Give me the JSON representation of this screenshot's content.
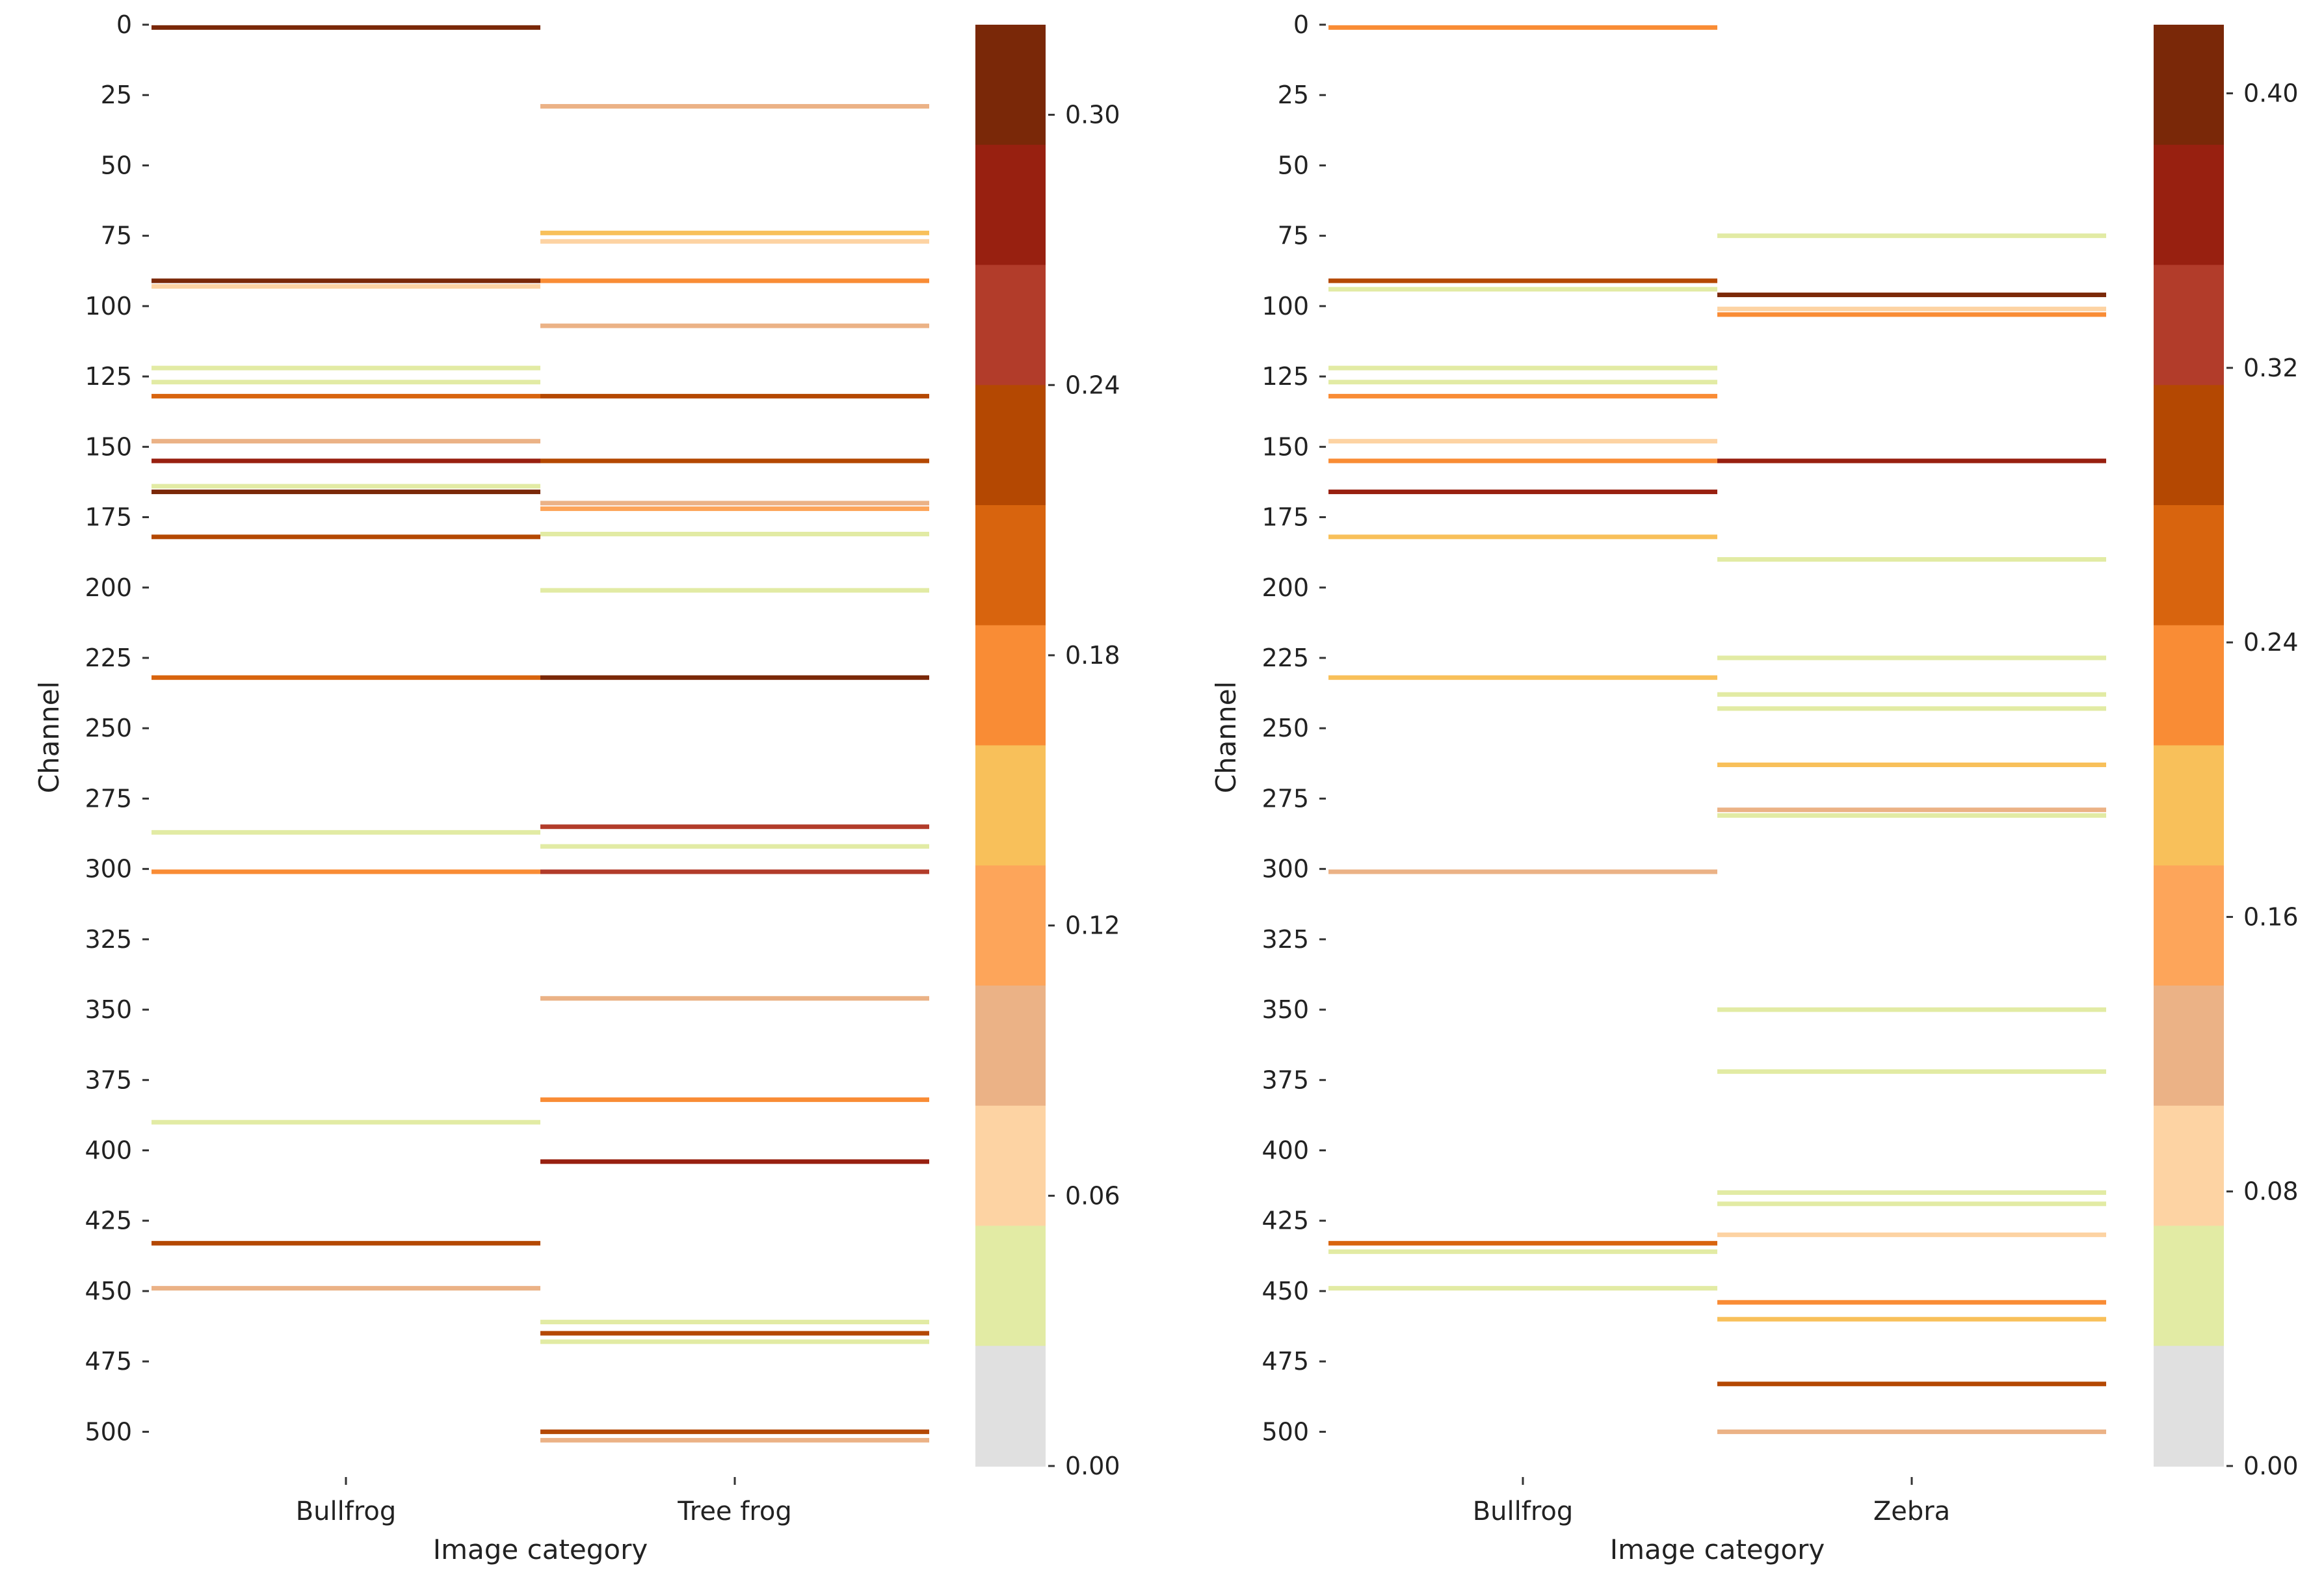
{
  "chart_data": [
    {
      "type": "heatmap",
      "title": "",
      "xlabel": "Image category",
      "ylabel": "Channel",
      "categories": [
        "Bullfrog",
        "Tree frog"
      ],
      "ylim": [
        0,
        511
      ],
      "yticks": [
        "0",
        "25",
        "50",
        "75",
        "100",
        "125",
        "150",
        "175",
        "200",
        "225",
        "250",
        "275",
        "300",
        "325",
        "350",
        "375",
        "400",
        "425",
        "450",
        "475",
        "500"
      ],
      "colorbar": {
        "min": 0.0,
        "max": 0.32,
        "ticks": [
          "0.00",
          "0.06",
          "0.12",
          "0.18",
          "0.24",
          "0.30"
        ]
      },
      "series": [
        {
          "category": "Bullfrog",
          "points": [
            {
              "channel": 1,
              "value": 0.31
            },
            {
              "channel": 91,
              "value": 0.3
            },
            {
              "channel": 93,
              "value": 0.07
            },
            {
              "channel": 122,
              "value": 0.03
            },
            {
              "channel": 127,
              "value": 0.03
            },
            {
              "channel": 132,
              "value": 0.19
            },
            {
              "channel": 148,
              "value": 0.09
            },
            {
              "channel": 155,
              "value": 0.28
            },
            {
              "channel": 164,
              "value": 0.03
            },
            {
              "channel": 166,
              "value": 0.32
            },
            {
              "channel": 182,
              "value": 0.22
            },
            {
              "channel": 232,
              "value": 0.2
            },
            {
              "channel": 287,
              "value": 0.03
            },
            {
              "channel": 301,
              "value": 0.18
            },
            {
              "channel": 390,
              "value": 0.03
            },
            {
              "channel": 433,
              "value": 0.23
            },
            {
              "channel": 449,
              "value": 0.08
            }
          ]
        },
        {
          "category": "Tree frog",
          "points": [
            {
              "channel": 29,
              "value": 0.08
            },
            {
              "channel": 74,
              "value": 0.14
            },
            {
              "channel": 77,
              "value": 0.07
            },
            {
              "channel": 91,
              "value": 0.18
            },
            {
              "channel": 107,
              "value": 0.08
            },
            {
              "channel": 132,
              "value": 0.23
            },
            {
              "channel": 155,
              "value": 0.22
            },
            {
              "channel": 170,
              "value": 0.08
            },
            {
              "channel": 172,
              "value": 0.11
            },
            {
              "channel": 181,
              "value": 0.03
            },
            {
              "channel": 201,
              "value": 0.04
            },
            {
              "channel": 232,
              "value": 0.32
            },
            {
              "channel": 285,
              "value": 0.26
            },
            {
              "channel": 292,
              "value": 0.03
            },
            {
              "channel": 301,
              "value": 0.24
            },
            {
              "channel": 346,
              "value": 0.08
            },
            {
              "channel": 382,
              "value": 0.18
            },
            {
              "channel": 404,
              "value": 0.28
            },
            {
              "channel": 461,
              "value": 0.03
            },
            {
              "channel": 465,
              "value": 0.23
            },
            {
              "channel": 468,
              "value": 0.03
            },
            {
              "channel": 500,
              "value": 0.22
            },
            {
              "channel": 503,
              "value": 0.08
            }
          ]
        }
      ]
    },
    {
      "type": "heatmap",
      "title": "",
      "xlabel": "Image category",
      "ylabel": "Channel",
      "categories": [
        "Bullfrog",
        "Zebra"
      ],
      "ylim": [
        0,
        511
      ],
      "yticks": [
        "0",
        "25",
        "50",
        "75",
        "100",
        "125",
        "150",
        "175",
        "200",
        "225",
        "250",
        "275",
        "300",
        "325",
        "350",
        "375",
        "400",
        "425",
        "450",
        "475",
        "500"
      ],
      "colorbar": {
        "min": 0.0,
        "max": 0.42,
        "ticks": [
          "0.00",
          "0.08",
          "0.16",
          "0.24",
          "0.32",
          "0.40"
        ]
      },
      "series": [
        {
          "category": "Bullfrog",
          "points": [
            {
              "channel": 1,
              "value": 0.23
            },
            {
              "channel": 91,
              "value": 0.3
            },
            {
              "channel": 94,
              "value": 0.04
            },
            {
              "channel": 122,
              "value": 0.04
            },
            {
              "channel": 127,
              "value": 0.04
            },
            {
              "channel": 132,
              "value": 0.23
            },
            {
              "channel": 148,
              "value": 0.1
            },
            {
              "channel": 155,
              "value": 0.24
            },
            {
              "channel": 166,
              "value": 0.36
            },
            {
              "channel": 182,
              "value": 0.18
            },
            {
              "channel": 232,
              "value": 0.18
            },
            {
              "channel": 301,
              "value": 0.12
            },
            {
              "channel": 433,
              "value": 0.25
            },
            {
              "channel": 436,
              "value": 0.04
            },
            {
              "channel": 449,
              "value": 0.06
            }
          ]
        },
        {
          "category": "Zebra",
          "points": [
            {
              "channel": 75,
              "value": 0.04
            },
            {
              "channel": 96,
              "value": 0.41
            },
            {
              "channel": 101,
              "value": 0.1
            },
            {
              "channel": 103,
              "value": 0.21
            },
            {
              "channel": 155,
              "value": 0.38
            },
            {
              "channel": 190,
              "value": 0.04
            },
            {
              "channel": 225,
              "value": 0.04
            },
            {
              "channel": 238,
              "value": 0.04
            },
            {
              "channel": 243,
              "value": 0.06
            },
            {
              "channel": 263,
              "value": 0.2
            },
            {
              "channel": 279,
              "value": 0.12
            },
            {
              "channel": 281,
              "value": 0.04
            },
            {
              "channel": 350,
              "value": 0.04
            },
            {
              "channel": 372,
              "value": 0.04
            },
            {
              "channel": 415,
              "value": 0.06
            },
            {
              "channel": 419,
              "value": 0.04
            },
            {
              "channel": 430,
              "value": 0.1
            },
            {
              "channel": 454,
              "value": 0.24
            },
            {
              "channel": 460,
              "value": 0.2
            },
            {
              "channel": 483,
              "value": 0.3
            },
            {
              "channel": 500,
              "value": 0.12
            }
          ]
        }
      ]
    }
  ]
}
